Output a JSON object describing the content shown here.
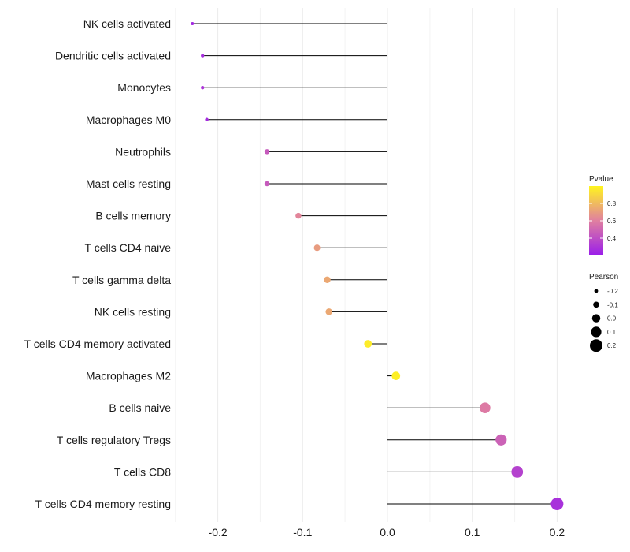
{
  "chart_data": {
    "type": "lollipop",
    "title": "",
    "xlabel": "",
    "ylabel": "",
    "xlim": [
      -0.25,
      0.22
    ],
    "x_ticks": [
      -0.2,
      -0.1,
      0.0,
      0.1,
      0.2
    ],
    "x_tick_labels": [
      "-0.2",
      "-0.1",
      "0.0",
      "0.1",
      "0.2"
    ],
    "grid": true,
    "categories": [
      "NK cells activated",
      "Dendritic cells activated",
      "Monocytes",
      "Macrophages M0",
      "Neutrophils",
      "Mast cells resting",
      "B cells memory",
      "T cells CD4 naive",
      "T cells gamma delta",
      "NK cells resting",
      "T cells CD4 memory activated",
      "Macrophages M2",
      "B cells naive",
      "T cells regulatory  Tregs ",
      "T cells CD8",
      "T cells CD4 memory resting"
    ],
    "pearson": [
      -0.23,
      -0.218,
      -0.218,
      -0.213,
      -0.142,
      -0.142,
      -0.105,
      -0.083,
      -0.071,
      -0.069,
      -0.023,
      0.01,
      0.115,
      0.134,
      0.153,
      0.2
    ],
    "pvalue": [
      0.25,
      0.27,
      0.3,
      0.26,
      0.45,
      0.45,
      0.62,
      0.7,
      0.74,
      0.74,
      0.97,
      0.98,
      0.58,
      0.48,
      0.35,
      0.28
    ],
    "legend_pvalue": {
      "title": "Pvalue",
      "labels": [
        "0.8",
        "0.6",
        "0.4"
      ],
      "values": [
        0.8,
        0.6,
        0.4
      ],
      "range": [
        0.2,
        1.0
      ],
      "color_low": "#9a1dea",
      "color_mid": "#e07fa0",
      "color_high": "#fff51f"
    },
    "legend_pearson": {
      "title": "Pearson",
      "labels": [
        "-0.2",
        "-0.1",
        "0.0",
        "0.1",
        "0.2"
      ],
      "values": [
        -0.2,
        -0.1,
        0.0,
        0.1,
        0.2
      ]
    },
    "legend_placement": "right"
  }
}
